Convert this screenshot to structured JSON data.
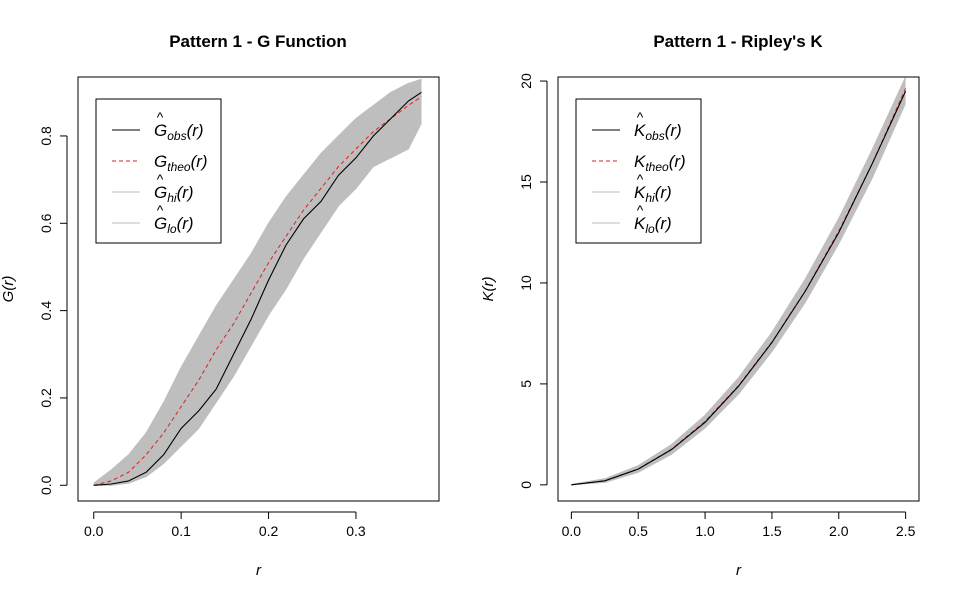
{
  "colors": {
    "observed": "#000000",
    "theoretical": "#DF2020",
    "envelope": "#BEBEBE",
    "axis": "#000000",
    "background": "#FFFFFF"
  },
  "chart_data": [
    {
      "type": "line",
      "title": "Pattern 1 - G Function",
      "xlabel": "r",
      "ylabel": "G(r)",
      "xlim": [
        -0.018,
        0.395
      ],
      "ylim": [
        -0.036,
        0.935
      ],
      "xticks": [
        "0.0",
        "0.1",
        "0.2",
        "0.3"
      ],
      "yticks": [
        "0.0",
        "0.2",
        "0.4",
        "0.6",
        "0.8"
      ],
      "legend_position": "top-left",
      "legend": [
        {
          "letter": "G",
          "hat": true,
          "sub": "obs",
          "arg": "(r)",
          "style": "solid",
          "color": "#000000"
        },
        {
          "letter": "G",
          "hat": false,
          "sub": "theo",
          "arg": "(r)",
          "style": "dashed",
          "color": "#DF2020"
        },
        {
          "letter": "G",
          "hat": true,
          "sub": "hi",
          "arg": "(r)",
          "style": "solid",
          "color": "#BEBEBE"
        },
        {
          "letter": "G",
          "hat": true,
          "sub": "lo",
          "arg": "(r)",
          "style": "solid",
          "color": "#BEBEBE"
        }
      ],
      "x": [
        0,
        0.02,
        0.04,
        0.06,
        0.08,
        0.1,
        0.12,
        0.14,
        0.16,
        0.18,
        0.2,
        0.22,
        0.24,
        0.26,
        0.28,
        0.3,
        0.32,
        0.34,
        0.36,
        0.375
      ],
      "series": [
        {
          "name": "obs",
          "values": [
            0,
            0.003,
            0.01,
            0.03,
            0.07,
            0.13,
            0.17,
            0.22,
            0.3,
            0.38,
            0.47,
            0.55,
            0.61,
            0.65,
            0.71,
            0.75,
            0.8,
            0.84,
            0.88,
            0.9
          ]
        },
        {
          "name": "theo",
          "values": [
            0,
            0.01,
            0.03,
            0.07,
            0.12,
            0.18,
            0.24,
            0.31,
            0.37,
            0.44,
            0.51,
            0.57,
            0.63,
            0.68,
            0.73,
            0.77,
            0.81,
            0.84,
            0.87,
            0.89
          ]
        },
        {
          "name": "hi",
          "values": [
            0.005,
            0.035,
            0.07,
            0.12,
            0.19,
            0.27,
            0.34,
            0.41,
            0.47,
            0.53,
            0.6,
            0.66,
            0.71,
            0.76,
            0.8,
            0.84,
            0.87,
            0.9,
            0.92,
            0.93
          ]
        },
        {
          "name": "lo",
          "values": [
            0,
            0,
            0.005,
            0.02,
            0.05,
            0.09,
            0.13,
            0.19,
            0.25,
            0.32,
            0.39,
            0.45,
            0.52,
            0.58,
            0.64,
            0.68,
            0.73,
            0.75,
            0.77,
            0.83
          ]
        }
      ]
    },
    {
      "type": "line",
      "title": "Pattern 1 - Ripley's K",
      "xlabel": "r",
      "ylabel": "K(r)",
      "xlim": [
        -0.1,
        2.6
      ],
      "ylim": [
        -0.8,
        20.2
      ],
      "xticks": [
        "0.0",
        "0.5",
        "1.0",
        "1.5",
        "2.0",
        "2.5"
      ],
      "yticks": [
        "0",
        "5",
        "10",
        "15",
        "20"
      ],
      "legend_position": "top-left",
      "legend": [
        {
          "letter": "K",
          "hat": true,
          "sub": "obs",
          "arg": "(r)",
          "style": "solid",
          "color": "#000000"
        },
        {
          "letter": "K",
          "hat": false,
          "sub": "theo",
          "arg": "(r)",
          "style": "dashed",
          "color": "#DF2020"
        },
        {
          "letter": "K",
          "hat": true,
          "sub": "hi",
          "arg": "(r)",
          "style": "solid",
          "color": "#BEBEBE"
        },
        {
          "letter": "K",
          "hat": true,
          "sub": "lo",
          "arg": "(r)",
          "style": "solid",
          "color": "#BEBEBE"
        }
      ],
      "x": [
        0,
        0.25,
        0.5,
        0.75,
        1.0,
        1.25,
        1.5,
        1.75,
        2.0,
        2.25,
        2.5
      ],
      "series": [
        {
          "name": "obs",
          "values": [
            0,
            0.2,
            0.78,
            1.75,
            3.1,
            4.88,
            7.05,
            9.6,
            12.5,
            15.9,
            19.5
          ]
        },
        {
          "name": "theo",
          "values": [
            0,
            0.196,
            0.785,
            1.767,
            3.142,
            4.909,
            7.069,
            9.621,
            12.566,
            15.904,
            19.635
          ]
        },
        {
          "name": "hi",
          "values": [
            0.02,
            0.3,
            0.95,
            2.0,
            3.45,
            5.3,
            7.55,
            10.2,
            13.2,
            16.6,
            20.2
          ]
        },
        {
          "name": "lo",
          "values": [
            0,
            0.12,
            0.62,
            1.52,
            2.82,
            4.5,
            6.6,
            9.05,
            11.95,
            15.2,
            18.9
          ]
        }
      ]
    }
  ]
}
